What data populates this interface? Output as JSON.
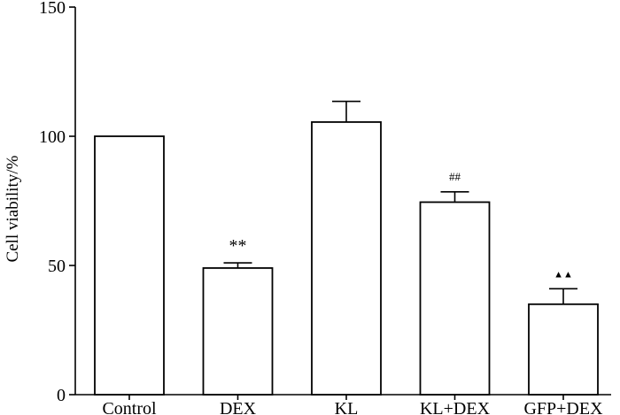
{
  "chart_data": {
    "type": "bar",
    "title": "",
    "xlabel": "",
    "ylabel": "Cell viability/%",
    "ylim": [
      0,
      150
    ],
    "yticks": [
      0,
      50,
      100,
      150
    ],
    "grid": false,
    "legend": "none",
    "bar_fill": "#ffffff",
    "bar_stroke": "#000000",
    "categories": [
      "Control",
      "DEX",
      "KL",
      "KL+DEX",
      "GFP+DEX"
    ],
    "values": [
      100,
      49,
      105.5,
      74.5,
      35
    ],
    "error_upper": [
      100,
      51,
      113.5,
      78.5,
      41
    ],
    "annotations": [
      "",
      "**",
      "",
      "##",
      "▲▲"
    ]
  }
}
